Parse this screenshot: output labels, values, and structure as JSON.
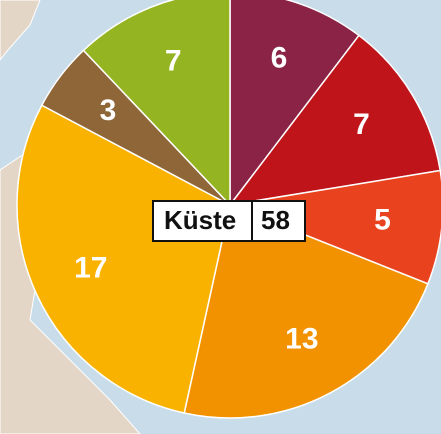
{
  "chart_data": {
    "type": "pie",
    "categories": [
      null,
      null,
      null,
      null,
      null,
      null,
      null
    ],
    "values": [
      6,
      7,
      5,
      13,
      17,
      3,
      7
    ],
    "colors": [
      "#8b2346",
      "#c0141b",
      "#e8431e",
      "#f39200",
      "#f9b200",
      "#8e6637",
      "#95b422"
    ],
    "center_label": "Küste",
    "total": 58
  }
}
